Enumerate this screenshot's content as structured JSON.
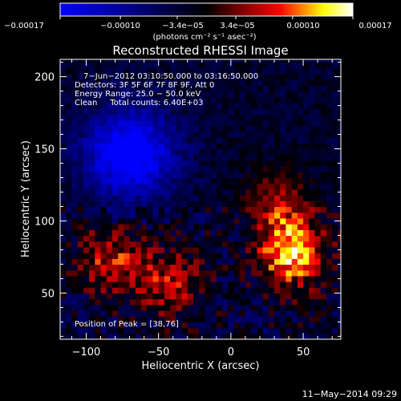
{
  "chart_data": {
    "type": "heatmap",
    "title": "Reconstructed RHESSI Image",
    "colorbar": {
      "tick_labels": [
        "−0.00017",
        "−0.00010",
        "−3.4e−05",
        "3.4e−05",
        "0.00010",
        "0.00017"
      ],
      "tick_values": [
        -0.00017,
        -0.0001,
        -3.4e-05,
        3.4e-05,
        0.0001,
        0.00017
      ],
      "range": [
        -0.00017,
        0.00017
      ],
      "unit_label": "(photons cm⁻² s⁻¹ asec⁻²)",
      "colors": [
        "#0000ff",
        "#000000",
        "#ff0000",
        "#ffff00",
        "#ffffff"
      ]
    },
    "info_lines": [
      "7−Jun−2012 03:10:50.000 to 03:16:50.000",
      "Detectors: 3F 5F 6F 7F 8F 9F, Att 0",
      "Energy Range: 25.0 − 50.0 keV",
      "Clean     Total counts: 6.40E+03"
    ],
    "peak_label": "Position of Peak = [38,76]",
    "xlabel": "Heliocentric X (arcsec)",
    "ylabel": "Heliocentric Y (arcsec)",
    "xlim": [
      -118,
      76
    ],
    "ylim": [
      18,
      212
    ],
    "x_ticks": [
      -100,
      -50,
      0,
      50
    ],
    "x_tick_labels": [
      "−100",
      "−50",
      "0",
      "50"
    ],
    "y_ticks": [
      50,
      100,
      150,
      200
    ],
    "y_tick_labels": [
      "50",
      "100",
      "150",
      "200"
    ],
    "grid": false,
    "sources": [
      {
        "name": "bright-source",
        "x": 40,
        "y": 76,
        "peak": 0.00017
      },
      {
        "name": "source-lower-left",
        "x": -85,
        "y": 72,
        "peak": 0.0001
      },
      {
        "name": "source-bottom",
        "x": -45,
        "y": 55,
        "peak": 9e-05
      },
      {
        "name": "source-upper-right",
        "x": 30,
        "y": 110,
        "peak": 8e-05
      },
      {
        "name": "negative-hole",
        "x": -72,
        "y": 145,
        "peak": -0.00017
      }
    ]
  },
  "footer": {
    "timestamp": "11−May−2014 09:29"
  }
}
